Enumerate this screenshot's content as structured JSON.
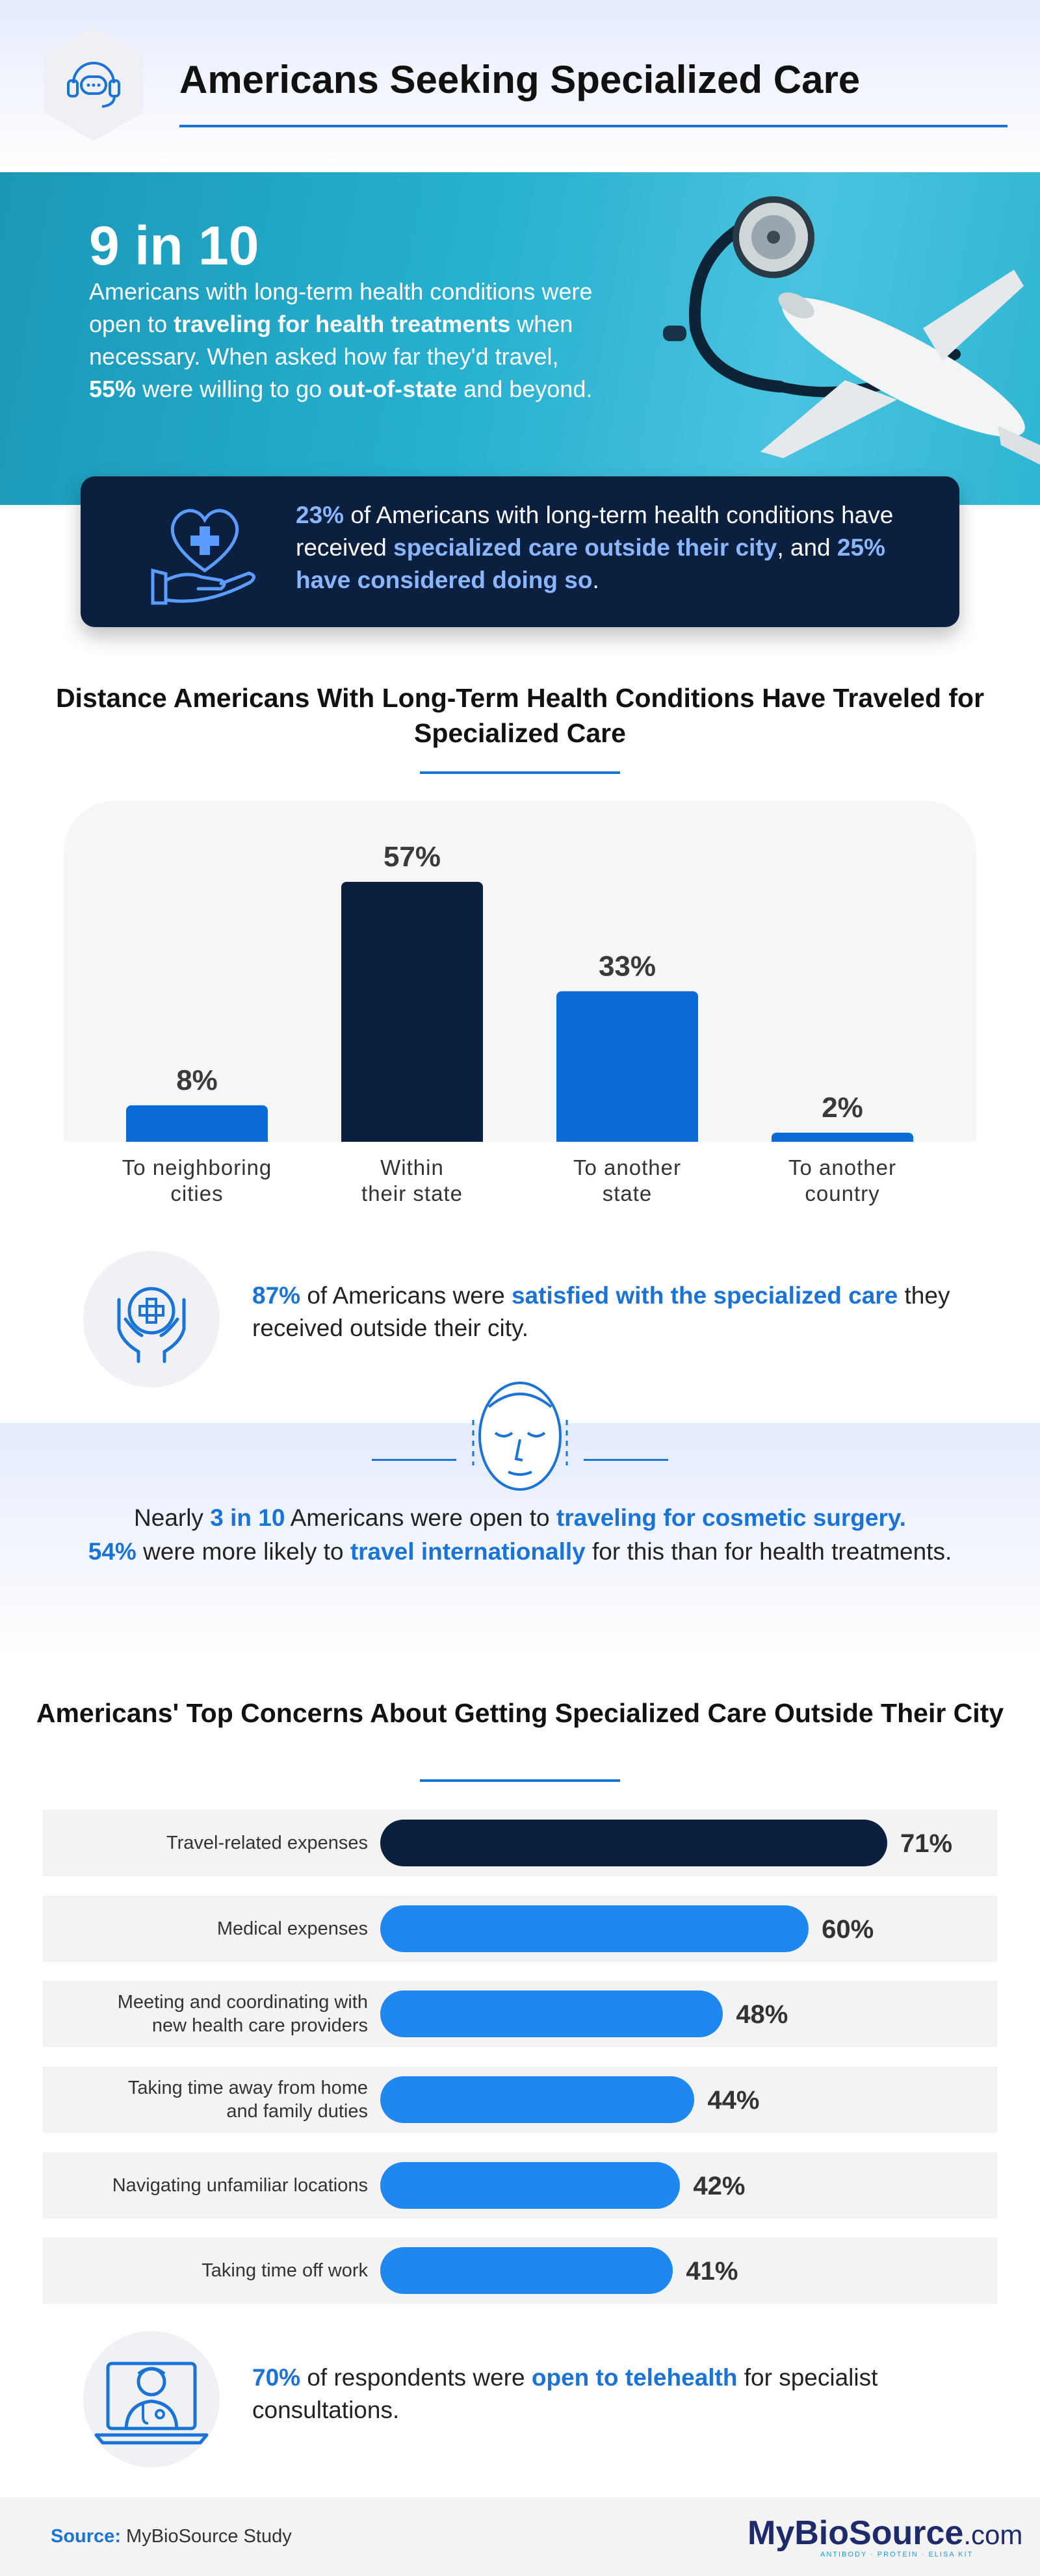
{
  "header": {
    "title": "Americans Seeking Specialized Care",
    "icon": "headset-chat-icon",
    "accent": "#1a73d6"
  },
  "hero": {
    "big_stat": "9 in 10",
    "t1": "Americans with long-term health conditions were open to ",
    "t2": "traveling for health treatments",
    "t3": " when necessary. When asked how far they'd travel, ",
    "t4": "55%",
    "t5": " were willing to go ",
    "t6": "out-of-state",
    "t7": " and beyond.",
    "art": "stethoscope-airplane-illustration"
  },
  "callout": {
    "icon": "hand-heart-cross-icon",
    "p1": "23%",
    "p2": " of Americans with long-term health conditions have received ",
    "p3": "specialized care outside their city",
    "p4": ", and ",
    "p5": "25% have considered doing so",
    "p6": "."
  },
  "distance_section": {
    "title": "Distance Americans With Long-Term Health Conditions Have Traveled for Specialized Care"
  },
  "chart_data": [
    {
      "type": "bar",
      "title": "Distance Americans With Long-Term Health Conditions Have Traveled for Specialized Care",
      "categories": [
        "To neighboring cities",
        "Within their state",
        "To another state",
        "To another country"
      ],
      "category_lines": [
        [
          "To neighboring",
          "cities"
        ],
        [
          "Within",
          "their state"
        ],
        [
          "To another",
          "state"
        ],
        [
          "To another",
          "country"
        ]
      ],
      "values": [
        8,
        57,
        33,
        2
      ],
      "value_labels": [
        "8%",
        "57%",
        "33%",
        "2%"
      ],
      "colors": [
        "#0a6ad6",
        "#0b1f3f",
        "#0a6ad6",
        "#0a6ad6"
      ],
      "ylim": [
        0,
        60
      ],
      "grid": false,
      "unit": "%"
    },
    {
      "type": "bar",
      "orientation": "horizontal",
      "title": "Americans' Top Concerns About Getting Specialized Care Outside Their City",
      "categories": [
        "Travel-related expenses",
        "Medical expenses",
        "Meeting and coordinating with new health care providers",
        "Taking time away from home and family duties",
        "Navigating unfamiliar locations",
        "Taking time off work"
      ],
      "values": [
        71,
        60,
        48,
        44,
        42,
        41
      ],
      "value_labels": [
        "71%",
        "60%",
        "48%",
        "44%",
        "42%",
        "41%"
      ],
      "colors": [
        "#0b1f3f",
        "#1e88f0",
        "#1e88f0",
        "#1e88f0",
        "#1e88f0",
        "#1e88f0"
      ],
      "xlim": [
        0,
        71
      ],
      "grid": false,
      "unit": "%"
    }
  ],
  "satisfied": {
    "icon": "hands-medical-cross-icon",
    "p1": "87%",
    "p2": " of Americans were ",
    "p3": "satisfied with the specialized care",
    "p4": " they received outside their city."
  },
  "cosmetic": {
    "icon": "face-outline-icon",
    "l1a": "Nearly ",
    "l1b": "3 in 10",
    "l1c": " Americans were open to ",
    "l1d": "traveling for cosmetic surgery.",
    "l2a": "54%",
    "l2b": " were more likely to ",
    "l2c": "travel internationally",
    "l2d": " for this than for health treatments."
  },
  "concerns_section": {
    "title": "Americans' Top Concerns About Getting Specialized Care Outside Their City",
    "label_lines": [
      [
        "Travel-related expenses"
      ],
      [
        "Medical expenses"
      ],
      [
        "Meeting and coordinating with",
        "new health care providers"
      ],
      [
        "Taking time away from home",
        "and family duties"
      ],
      [
        "Navigating unfamiliar locations"
      ],
      [
        "Taking time off work"
      ]
    ]
  },
  "telehealth": {
    "icon": "doctor-laptop-icon",
    "p1": "70%",
    "p2": " of respondents were ",
    "p3": "open to telehealth",
    "p4": " for specialist consultations."
  },
  "footer": {
    "source_label": "Source:",
    "source_value": " MyBioSource Study",
    "brand_a": "My",
    "brand_b": "BioSource",
    "brand_c": ".com",
    "brand_tagline": "ANTIBODY · PROTEIN · ELISA KIT"
  }
}
